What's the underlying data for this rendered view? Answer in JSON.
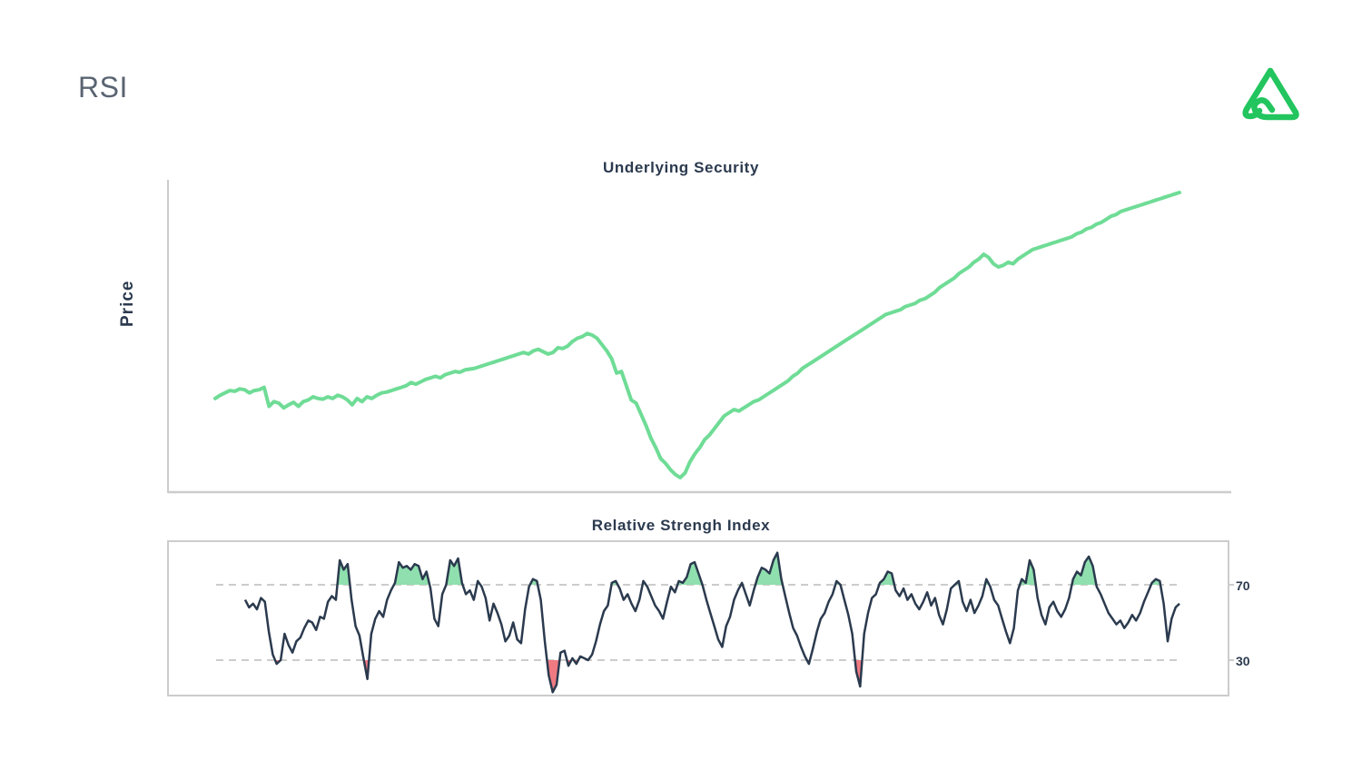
{
  "page": {
    "title": "RSI"
  },
  "logo": {
    "icon": "brand-triangle-logo-icon",
    "color": "#22c55e"
  },
  "colors": {
    "price_line": "#6fdc96",
    "rsi_line": "#2b3a4e",
    "overbought_fill": "#8fe0ae",
    "oversold_fill": "#f07a82",
    "axis": "#cccccc",
    "threshold_line": "#bbbbbb"
  },
  "chart_data": [
    {
      "type": "line",
      "title": "Underlying Security",
      "ylabel": "Price",
      "xlabel": "",
      "grid": false,
      "series": [
        {
          "values": [
            45,
            47,
            48.5,
            50,
            49.5,
            51,
            50.5,
            48.5,
            50,
            50.5,
            52,
            40,
            43,
            42,
            39,
            41,
            42.5,
            40,
            43,
            44,
            46,
            45,
            44.5,
            46,
            45,
            47,
            46,
            44,
            41,
            45,
            43,
            46,
            45,
            47,
            48.5,
            49,
            50,
            51,
            52,
            53,
            55,
            54,
            55.5,
            57,
            58,
            59,
            58,
            60,
            61,
            62,
            61.5,
            63,
            63.5,
            64,
            65,
            66,
            67,
            68,
            69,
            70,
            71,
            72,
            73,
            74,
            73,
            75,
            76,
            74.5,
            73,
            74,
            77,
            76.5,
            78,
            81,
            83,
            84,
            86,
            85,
            83,
            79,
            75,
            70,
            61,
            62,
            53,
            44,
            42,
            35,
            28,
            20,
            14,
            7,
            4,
            0,
            -3,
            -5,
            -2,
            5,
            10,
            14,
            19,
            22,
            26,
            30,
            34,
            36,
            38,
            37,
            39,
            41,
            43,
            44,
            46,
            48,
            50,
            52,
            54,
            56,
            59,
            61,
            64,
            66,
            68,
            70,
            72,
            74,
            76,
            78,
            80,
            82,
            84,
            86,
            88,
            90,
            92,
            94,
            96,
            98,
            99,
            100,
            101,
            103,
            104,
            105,
            107,
            108,
            110,
            112,
            115,
            117,
            119,
            121,
            124,
            126,
            128,
            131,
            133,
            136,
            134,
            130,
            128,
            129,
            131,
            130,
            133,
            135,
            137,
            139,
            140,
            141,
            142,
            143,
            144,
            145,
            146,
            147,
            149,
            150,
            152,
            153,
            155,
            156,
            158,
            160,
            161,
            163,
            164,
            165,
            166,
            167,
            168,
            169,
            170,
            171,
            172,
            173,
            174,
            175
          ],
          "color": "#6fdc96"
        }
      ]
    },
    {
      "type": "line",
      "title": "Relative Strengh Index",
      "xlabel": "",
      "ylabel": "",
      "grid": false,
      "ylim": [
        9,
        88
      ],
      "yticks": [
        "70",
        "30"
      ],
      "thresholds": {
        "overbought": 70,
        "oversold": 30
      },
      "series": [
        {
          "values": [
            62,
            58,
            60,
            57,
            63,
            61,
            45,
            33,
            28,
            30,
            44,
            38,
            34,
            40,
            42,
            47,
            51,
            50,
            46,
            53,
            52,
            61,
            64,
            62,
            83,
            78,
            81,
            62,
            48,
            43,
            31,
            20,
            44,
            52,
            56,
            53,
            62,
            67,
            71,
            82,
            79,
            80,
            78,
            81,
            80,
            73,
            77,
            68,
            52,
            48,
            65,
            70,
            83,
            80,
            84,
            71,
            65,
            67,
            62,
            72,
            69,
            63,
            51,
            60,
            55,
            49,
            40,
            43,
            50,
            41,
            39,
            57,
            69,
            73,
            72,
            62,
            40,
            22,
            13,
            17,
            34,
            35,
            27,
            31,
            28,
            32,
            31,
            30,
            33,
            40,
            49,
            56,
            59,
            71,
            72,
            68,
            62,
            65,
            60,
            56,
            62,
            72,
            69,
            64,
            59,
            56,
            52,
            61,
            69,
            66,
            72,
            71,
            74,
            81,
            82,
            76,
            70,
            62,
            55,
            48,
            41,
            37,
            48,
            53,
            62,
            67,
            71,
            65,
            59,
            67,
            74,
            79,
            78,
            76,
            83,
            87,
            73,
            64,
            55,
            47,
            43,
            37,
            32,
            28,
            36,
            45,
            52,
            55,
            61,
            65,
            72,
            70,
            62,
            54,
            44,
            24,
            16,
            44,
            55,
            63,
            65,
            71,
            73,
            77,
            76,
            67,
            64,
            68,
            62,
            65,
            60,
            57,
            61,
            66,
            59,
            63,
            54,
            49,
            57,
            68,
            70,
            72,
            61,
            56,
            62,
            55,
            59,
            64,
            73,
            69,
            62,
            59,
            52,
            45,
            39,
            47,
            67,
            73,
            71,
            83,
            78,
            63,
            54,
            49,
            58,
            61,
            56,
            53,
            57,
            63,
            73,
            77,
            75,
            82,
            85,
            80,
            69,
            65,
            60,
            55,
            52,
            49,
            51,
            47,
            50,
            54,
            51,
            55,
            61,
            66,
            71,
            73,
            72,
            60,
            40,
            52,
            58,
            60
          ],
          "color": "#2b3a4e"
        }
      ]
    }
  ]
}
